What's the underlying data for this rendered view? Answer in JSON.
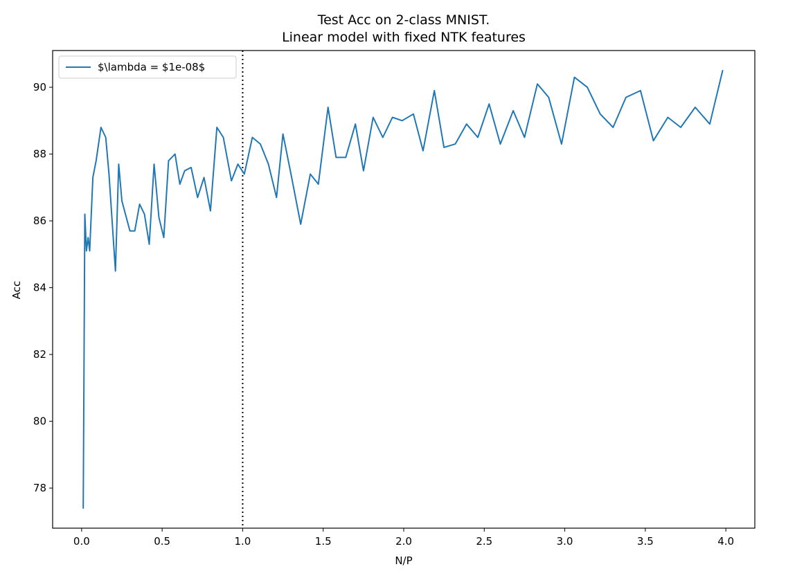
{
  "chart_data": {
    "type": "line",
    "title_line1": "Test Acc on 2-class MNIST.",
    "title_line2": "Linear model with fixed NTK features",
    "xlabel": "N/P",
    "ylabel": "Acc",
    "xlim": [
      -0.18,
      4.18
    ],
    "ylim": [
      76.8,
      91.1
    ],
    "xticks": [
      0.0,
      0.5,
      1.0,
      1.5,
      2.0,
      2.5,
      3.0,
      3.5,
      4.0
    ],
    "xtick_labels": [
      "0.0",
      "0.5",
      "1.0",
      "1.5",
      "2.0",
      "2.5",
      "3.0",
      "3.5",
      "4.0"
    ],
    "yticks": [
      78,
      80,
      82,
      84,
      86,
      88,
      90
    ],
    "ytick_labels": [
      "78",
      "80",
      "82",
      "84",
      "86",
      "88",
      "90"
    ],
    "grid": false,
    "legend_position": "top-left",
    "vline": {
      "x": 1.0,
      "style": "dotted",
      "color": "#000000"
    },
    "series": [
      {
        "name": "$\\lambda = $1e-08$",
        "color": "#1f77b4",
        "x": [
          0.01,
          0.02,
          0.03,
          0.04,
          0.05,
          0.07,
          0.09,
          0.12,
          0.15,
          0.17,
          0.21,
          0.23,
          0.25,
          0.3,
          0.33,
          0.36,
          0.39,
          0.42,
          0.45,
          0.48,
          0.51,
          0.54,
          0.58,
          0.61,
          0.64,
          0.68,
          0.72,
          0.76,
          0.8,
          0.84,
          0.88,
          0.93,
          0.97,
          1.01,
          1.06,
          1.11,
          1.16,
          1.21,
          1.25,
          1.3,
          1.36,
          1.42,
          1.47,
          1.53,
          1.58,
          1.64,
          1.7,
          1.75,
          1.81,
          1.87,
          1.93,
          1.99,
          2.06,
          2.12,
          2.19,
          2.25,
          2.32,
          2.39,
          2.46,
          2.53,
          2.6,
          2.68,
          2.75,
          2.83,
          2.9,
          2.98,
          3.06,
          3.14,
          3.22,
          3.3,
          3.38,
          3.47,
          3.55,
          3.64,
          3.72,
          3.81,
          3.9,
          3.98
        ],
        "values": [
          77.4,
          86.2,
          85.1,
          85.5,
          85.1,
          87.3,
          87.8,
          88.8,
          88.5,
          87.4,
          84.5,
          87.7,
          86.6,
          85.7,
          85.7,
          86.5,
          86.2,
          85.3,
          87.7,
          86.1,
          85.5,
          87.8,
          88.0,
          87.1,
          87.5,
          87.6,
          86.7,
          87.3,
          86.3,
          88.8,
          88.5,
          87.2,
          87.7,
          87.4,
          88.5,
          88.3,
          87.7,
          86.7,
          88.6,
          87.4,
          85.9,
          87.4,
          87.1,
          89.4,
          87.9,
          87.9,
          88.9,
          87.5,
          89.1,
          88.5,
          89.1,
          89.0,
          89.2,
          88.1,
          89.9,
          88.2,
          88.3,
          88.9,
          88.5,
          89.5,
          88.3,
          89.3,
          88.5,
          90.1,
          89.7,
          88.3,
          90.3,
          90.0,
          89.2,
          88.8,
          89.7,
          89.9,
          88.4,
          89.1,
          88.8,
          89.4,
          88.9,
          90.5
        ]
      }
    ]
  }
}
